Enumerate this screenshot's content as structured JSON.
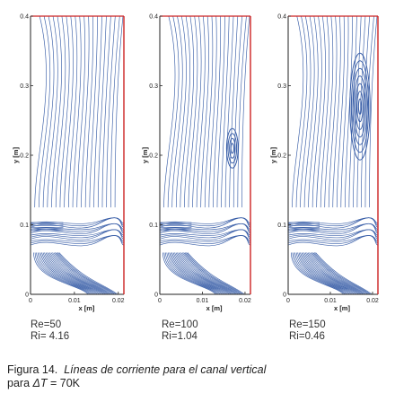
{
  "figure": {
    "panels": [
      {
        "re_label": "Re=50",
        "ri_label": "Ri= 4.16",
        "vortex": 0
      },
      {
        "re_label": "Re=100",
        "ri_label": "Ri=1.04",
        "vortex": 1
      },
      {
        "re_label": "Re=150",
        "ri_label": "Ri=0.46",
        "vortex": 2
      }
    ],
    "y_axis": {
      "label": "y [m]",
      "ticks": [
        "0",
        "0.1",
        "0.2",
        "0.3",
        "0.4"
      ]
    },
    "x_axis": {
      "label": "x [m]",
      "ticks": [
        "0",
        "0.01",
        "0.02"
      ]
    },
    "colors": {
      "streamline": "#3a5fa8",
      "wall": "#cc2222",
      "frame": "#222222"
    }
  },
  "caption": {
    "label": "Figura 14.",
    "title": "Líneas de corriente para el canal vertical",
    "line2_prefix": "para ",
    "delta_symbol": "ΔT",
    "line2_suffix": " = 70K"
  }
}
